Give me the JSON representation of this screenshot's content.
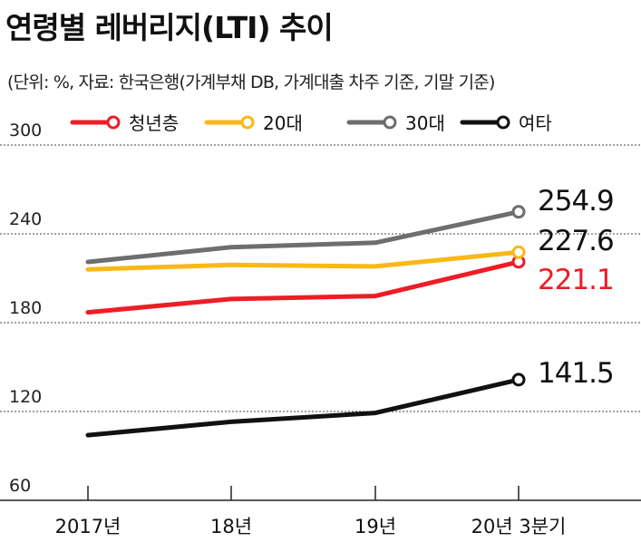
{
  "title": "연령별 레버리지(LTI) 추이",
  "subtitle": "(단위: %, 자료: 한국은행(가계부채 DB, 가계대출 차주 기준, 기말 기준)",
  "chart_data": {
    "type": "line",
    "title": "연령별 레버리지(LTI) 추이",
    "categories": [
      "2017년",
      "18년",
      "19년",
      "20년 3분기"
    ],
    "ylim": [
      60,
      300
    ],
    "yticks": [
      "60",
      "120",
      "180",
      "240",
      "300"
    ],
    "grid": "dashed horizontal",
    "legend_position": "top",
    "series": [
      {
        "name": "청년층",
        "color": "#ee1c25",
        "values": [
          187,
          196,
          198,
          221.1
        ],
        "end_label": "221.1"
      },
      {
        "name": "20대",
        "color": "#f9b816",
        "values": [
          216,
          219,
          218,
          227.6
        ],
        "end_label": "227.6"
      },
      {
        "name": "30대",
        "color": "#6d6e70",
        "values": [
          221,
          231,
          234,
          254.9
        ],
        "end_label": "254.9"
      },
      {
        "name": "여타",
        "color": "#111111",
        "values": [
          104,
          113,
          119,
          141.5
        ],
        "end_label": "141.5"
      }
    ]
  }
}
